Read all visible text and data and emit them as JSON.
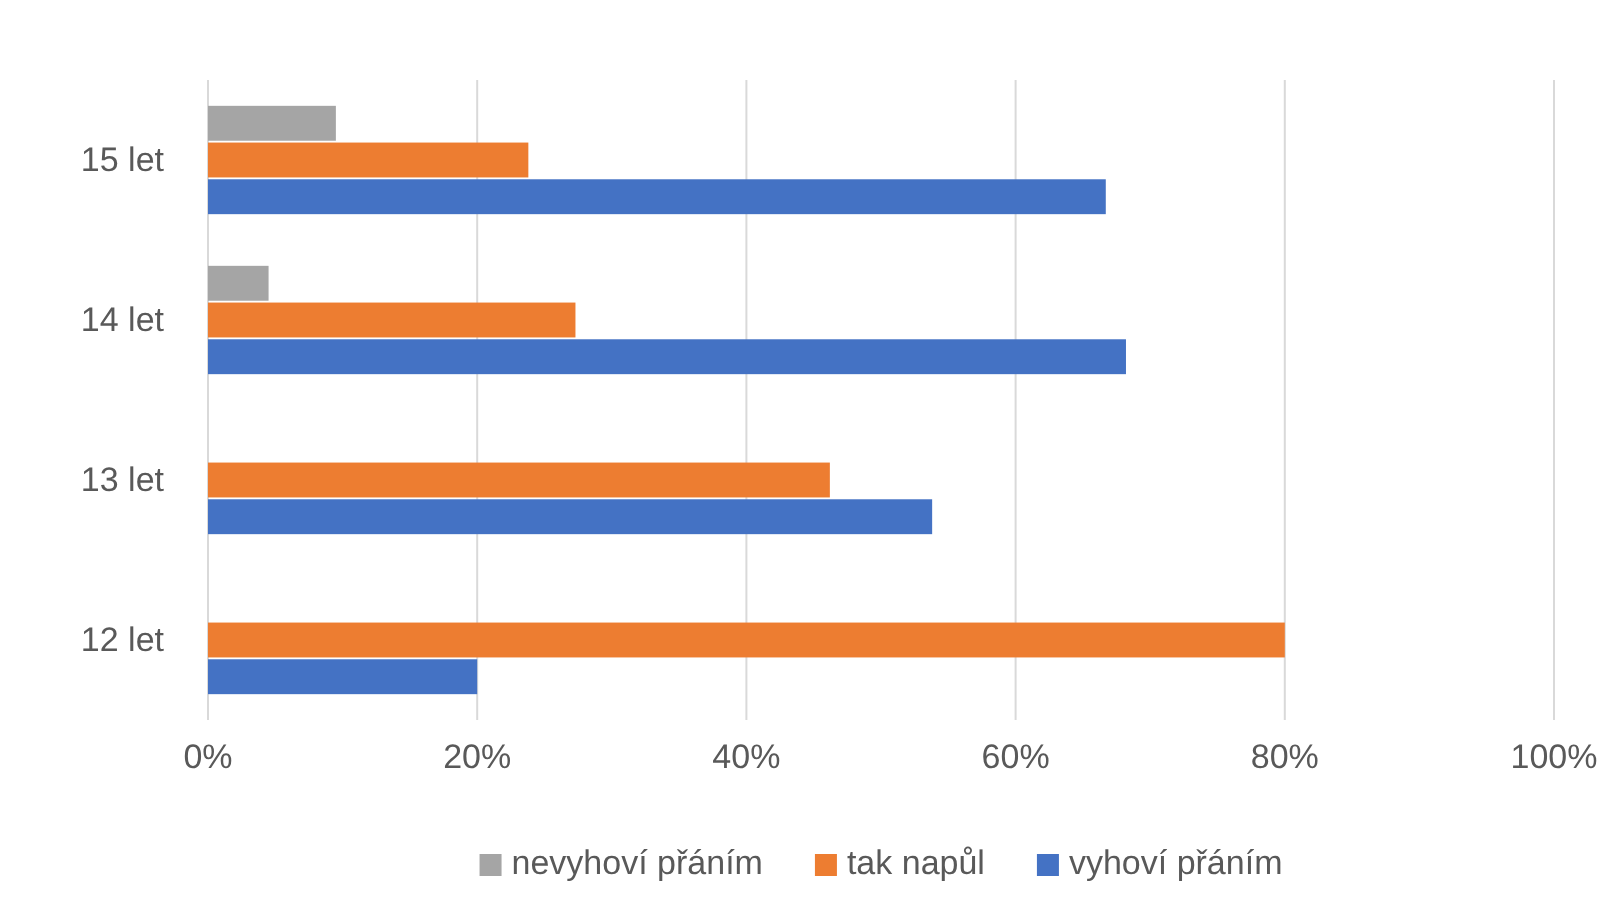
{
  "chart_data": {
    "type": "bar",
    "orientation": "horizontal",
    "categories": [
      "15 let",
      "14 let",
      "13 let",
      "12 let"
    ],
    "series": [
      {
        "name": "nevyhoví přáním",
        "color": "#a5a5a5",
        "values": [
          9.5,
          4.5,
          null,
          null
        ]
      },
      {
        "name": "tak napůl",
        "color": "#ed7d31",
        "values": [
          23.8,
          27.3,
          46.2,
          80
        ]
      },
      {
        "name": "vyhoví přáním",
        "color": "#4472c4",
        "values": [
          66.7,
          68.2,
          53.8,
          20
        ]
      }
    ],
    "xlim": [
      0,
      100
    ],
    "xticks": [
      {
        "value": 0,
        "label": "0%"
      },
      {
        "value": 20,
        "label": "20%"
      },
      {
        "value": 40,
        "label": "40%"
      },
      {
        "value": 60,
        "label": "60%"
      },
      {
        "value": 80,
        "label": "80%"
      },
      {
        "value": 100,
        "label": "100%"
      }
    ],
    "grid": "x",
    "legend": "bottom"
  }
}
